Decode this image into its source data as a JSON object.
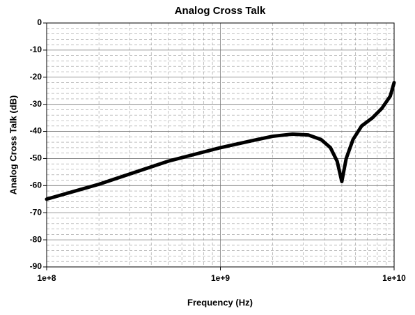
{
  "chart_data": {
    "type": "line",
    "title": "Analog Cross Talk",
    "x_label": "Frequency (Hz)",
    "y_label": "Analog Cross Talk (dB)",
    "x_scale": "log",
    "grid": true,
    "minor_grid": true,
    "xlim": [
      100000000,
      10000000000
    ],
    "xticks": [
      {
        "value": 100000000,
        "label": "1e+8"
      },
      {
        "value": 1000000000,
        "label": "1e+9"
      },
      {
        "value": 10000000000,
        "label": "1e+10"
      }
    ],
    "ylim": [
      -90,
      0
    ],
    "yticks": [
      0,
      -10,
      -20,
      -30,
      -40,
      -50,
      -60,
      -70,
      -80,
      -90
    ],
    "x": [
      100000000,
      200000000,
      500000000,
      1000000000,
      1500000000,
      2000000000,
      2600000000,
      3200000000,
      3800000000,
      4300000000,
      4700000000,
      5000000000,
      5300000000,
      5800000000,
      6500000000,
      7500000000,
      8500000000,
      9500000000,
      10000000000
    ],
    "series": [
      {
        "name": "Analog Cross Talk",
        "color": "#000000",
        "values": [
          -65,
          -59.5,
          -51,
          -46,
          -43.5,
          -41.8,
          -41,
          -41.3,
          -43,
          -46,
          -51,
          -58.5,
          -50,
          -43,
          -38,
          -35,
          -31.5,
          -27,
          -22
        ]
      }
    ]
  }
}
